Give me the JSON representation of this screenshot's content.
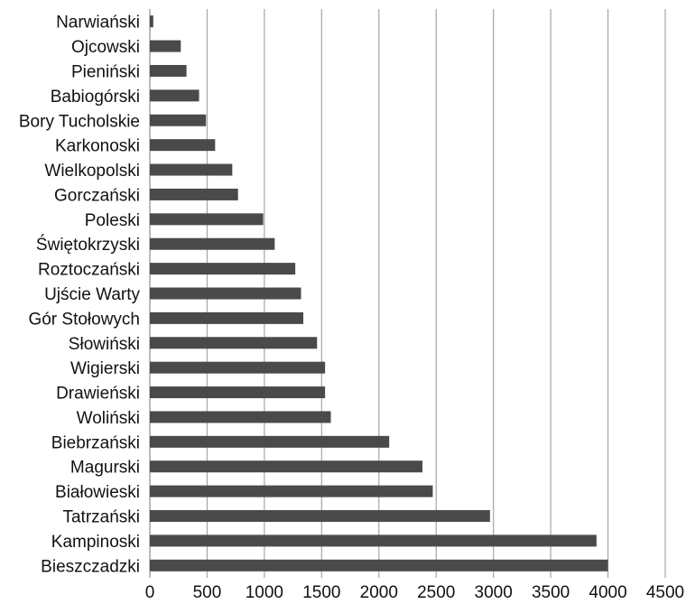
{
  "chart_data": {
    "type": "bar",
    "orientation": "horizontal",
    "title": "",
    "xlabel": "",
    "ylabel": "",
    "xlim": [
      0,
      4500
    ],
    "x_ticks": [
      0,
      500,
      1000,
      1500,
      2000,
      2500,
      3000,
      3500,
      4000,
      4500
    ],
    "grid": "vertical",
    "legend": "none",
    "colors": {
      "bar": "#4a4a4a",
      "grid": "#a6a6a6",
      "axis": "#a6a6a6"
    },
    "categories": [
      "Narwiański",
      "Ojcowski",
      "Pieniński",
      "Babiogórski",
      "Bory Tucholskie",
      "Karkonoski",
      "Wielkopolski",
      "Gorczański",
      "Poleski",
      "Świętokrzyski",
      "Roztoczański",
      "Ujście Warty",
      "Gór Stołowych",
      "Słowiński",
      "Wigierski",
      "Drawieński",
      "Woliński",
      "Biebrzański",
      "Magurski",
      "Białowieski",
      "Tatrzański",
      "Kampinoski",
      "Bieszczadzki"
    ],
    "values": [
      30,
      270,
      320,
      430,
      490,
      570,
      720,
      770,
      990,
      1090,
      1270,
      1320,
      1340,
      1460,
      1530,
      1530,
      1580,
      2090,
      2380,
      2470,
      2970,
      3900,
      4000
    ]
  }
}
